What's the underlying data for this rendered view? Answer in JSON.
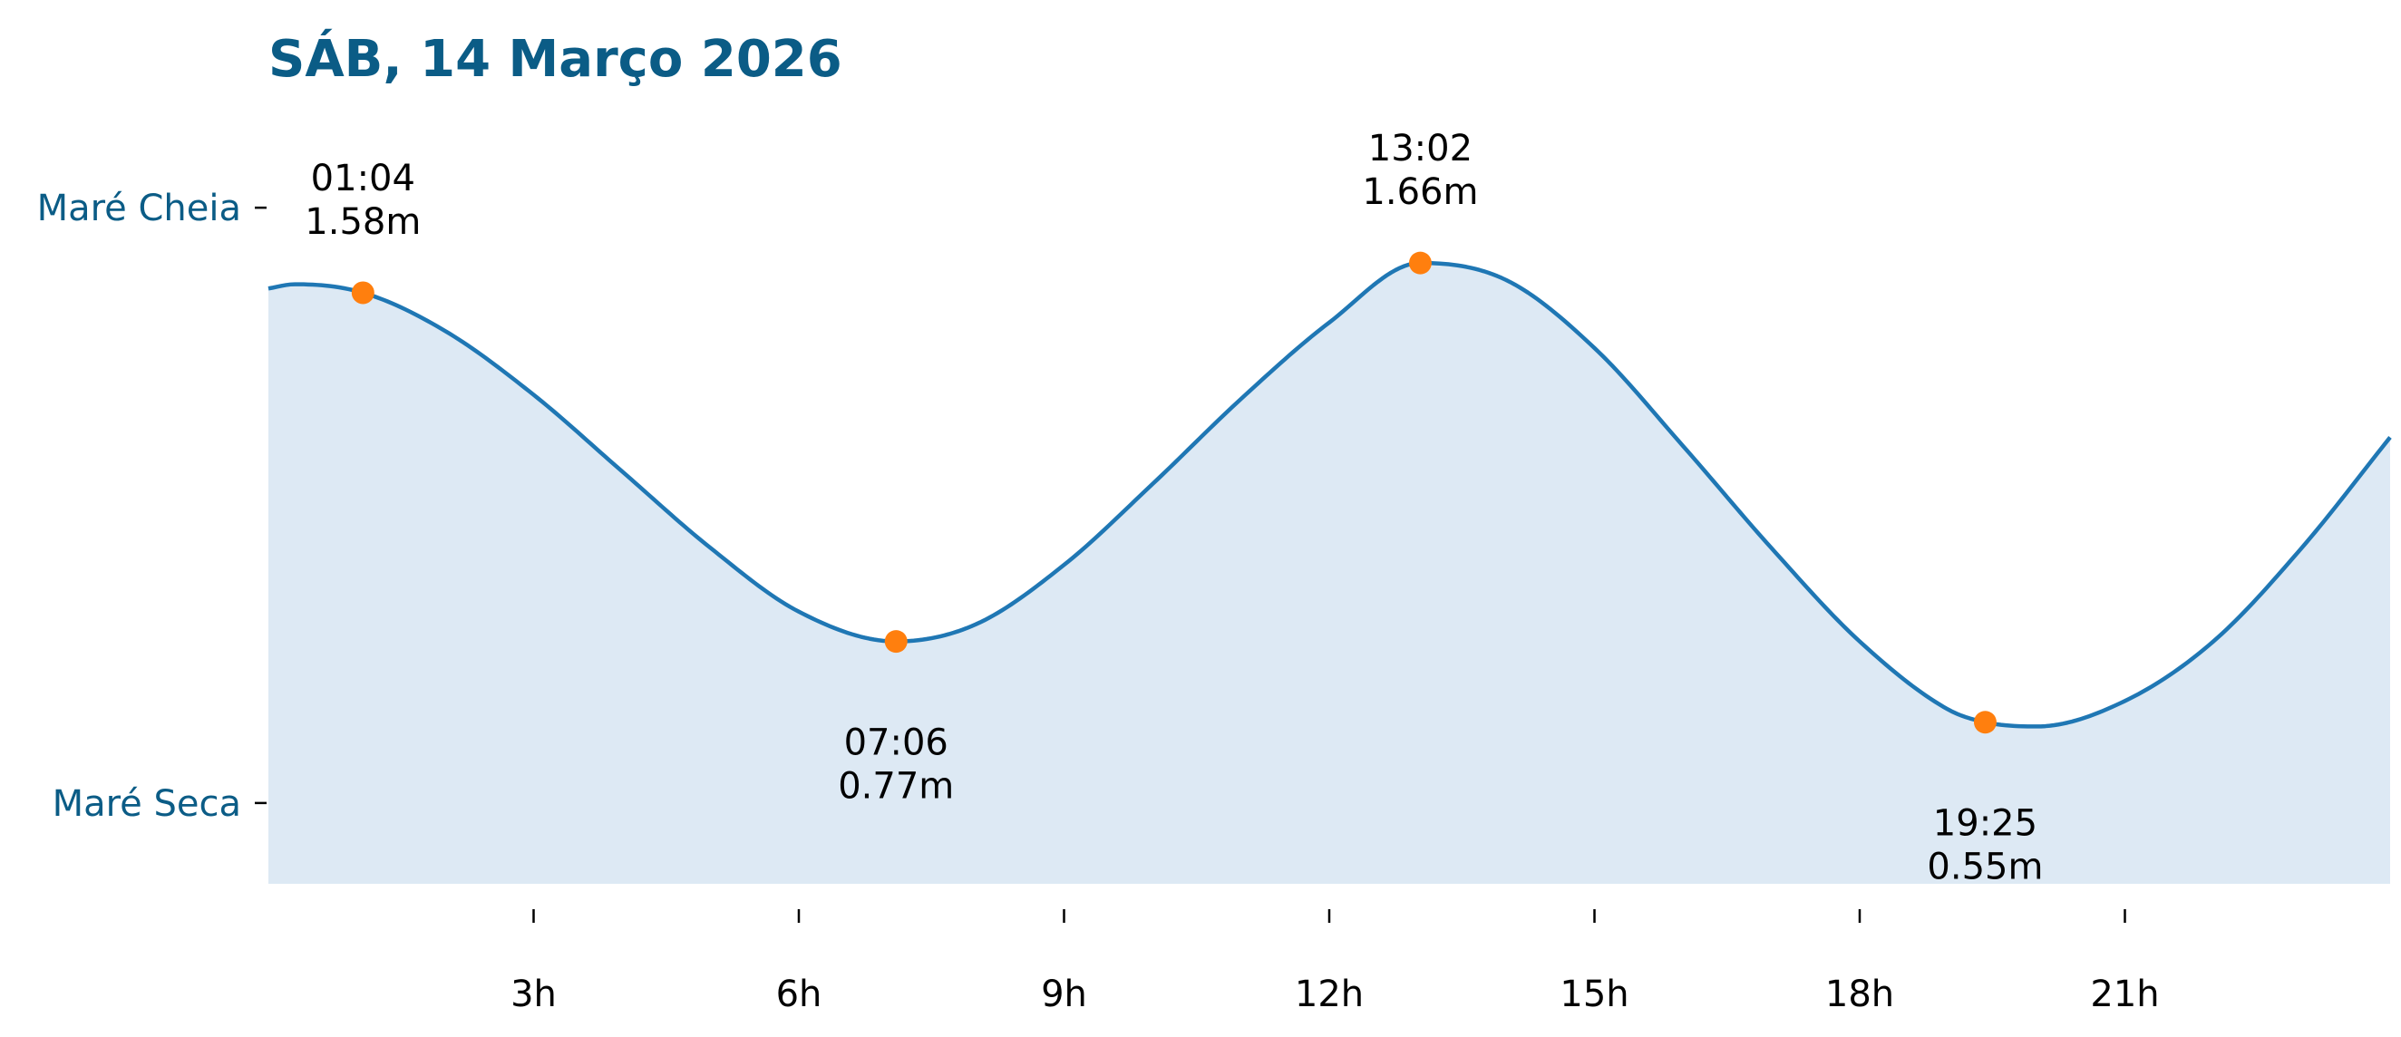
{
  "chart_data": {
    "type": "area",
    "title": "SÁB, 14 Março 2026",
    "x_unit": "hours",
    "xlim": [
      0,
      24
    ],
    "ylim": [
      0.29,
      2.07
    ],
    "x_ticks": [
      3,
      6,
      9,
      12,
      15,
      18,
      21
    ],
    "x_tick_labels": [
      "3h",
      "6h",
      "9h",
      "12h",
      "15h",
      "18h",
      "21h"
    ],
    "y_ticks": [
      {
        "value": 1.88,
        "label": "Maré Cheia"
      },
      {
        "value": 0.48,
        "label": "Maré Seca"
      }
    ],
    "curve": {
      "x": [
        0,
        0.3,
        1.07,
        2,
        3,
        4,
        5,
        6,
        7.1,
        8,
        9,
        10,
        11,
        12,
        13.03,
        14,
        15,
        16,
        17,
        18,
        19,
        19.42,
        20,
        21,
        22,
        23,
        24
      ],
      "y": [
        1.69,
        1.7,
        1.68,
        1.59,
        1.44,
        1.26,
        1.08,
        0.93,
        0.86,
        0.9,
        1.04,
        1.23,
        1.43,
        1.61,
        1.75,
        1.71,
        1.55,
        1.32,
        1.08,
        0.86,
        0.7,
        0.67,
        0.66,
        0.72,
        0.86,
        1.08,
        1.34
      ]
    },
    "extremes": [
      {
        "time": "01:04",
        "x": 1.07,
        "height": "1.58m",
        "y_plot": 1.68,
        "label_position": "above"
      },
      {
        "time": "07:06",
        "x": 7.1,
        "height": "0.77m",
        "y_plot": 0.86,
        "label_position": "below"
      },
      {
        "time": "13:02",
        "x": 13.03,
        "height": "1.66m",
        "y_plot": 1.75,
        "label_position": "above"
      },
      {
        "time": "19:25",
        "x": 19.42,
        "height": "0.55m",
        "y_plot": 0.67,
        "label_position": "below"
      }
    ],
    "grid": false,
    "legend": "none",
    "colors": {
      "title": "#0b5c86",
      "ytick_label": "#0b5c86",
      "line": "#1f77b4",
      "fill": "#dde9f4",
      "marker": "#ff7f0e",
      "text": "#000000"
    }
  }
}
